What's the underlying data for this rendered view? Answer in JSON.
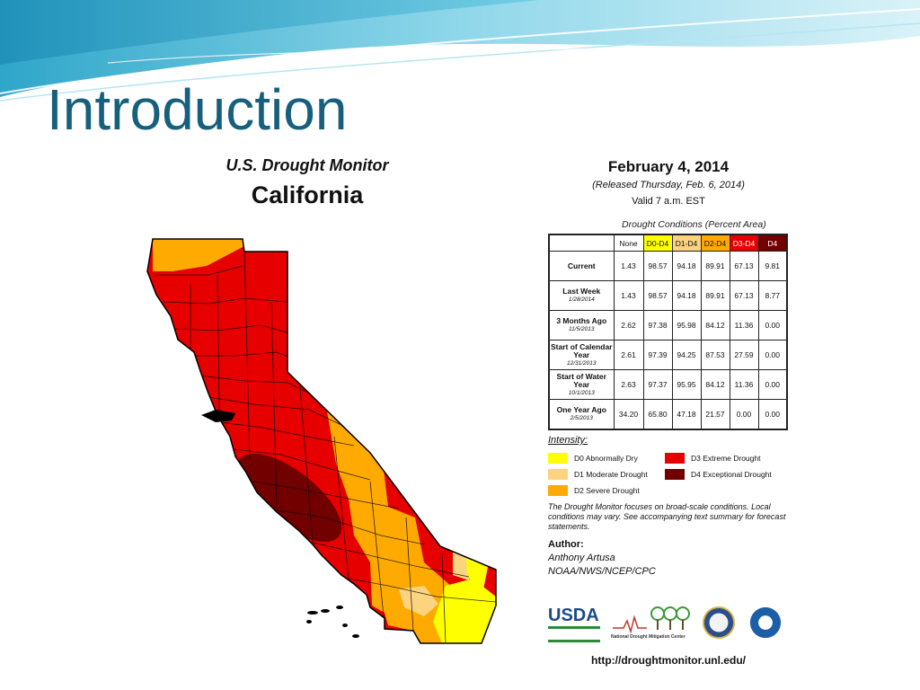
{
  "slide": {
    "title": "Introduction"
  },
  "map": {
    "header": "U.S. Drought Monitor",
    "state": "California"
  },
  "report": {
    "date": "February 4, 2014",
    "released": "(Released Thursday, Feb. 6, 2014)",
    "valid": "Valid 7 a.m. EST",
    "conditions_title": "Drought Conditions (Percent Area)"
  },
  "table": {
    "columns": [
      {
        "label": "None",
        "color": "#ffffff"
      },
      {
        "label": "D0-D4",
        "color": "#ffff00"
      },
      {
        "label": "D1-D4",
        "color": "#fcd37f"
      },
      {
        "label": "D2-D4",
        "color": "#ffaa00"
      },
      {
        "label": "D3-D4",
        "color": "#e60000"
      },
      {
        "label": "D4",
        "color": "#730000"
      }
    ],
    "rows": [
      {
        "label": "Current",
        "date": "",
        "values": [
          "1.43",
          "98.57",
          "94.18",
          "89.91",
          "67.13",
          "9.81"
        ]
      },
      {
        "label": "Last Week",
        "date": "1/28/2014",
        "values": [
          "1.43",
          "98.57",
          "94.18",
          "89.91",
          "67.13",
          "8.77"
        ]
      },
      {
        "label": "3 Months Ago",
        "date": "11/5/2013",
        "values": [
          "2.62",
          "97.38",
          "95.98",
          "84.12",
          "11.36",
          "0.00"
        ]
      },
      {
        "label": "Start of Calendar Year",
        "date": "12/31/2013",
        "values": [
          "2.61",
          "97.39",
          "94.25",
          "87.53",
          "27.59",
          "0.00"
        ]
      },
      {
        "label": "Start of Water Year",
        "date": "10/1/2013",
        "values": [
          "2.63",
          "97.37",
          "95.95",
          "84.12",
          "11.36",
          "0.00"
        ]
      },
      {
        "label": "One Year Ago",
        "date": "2/5/2013",
        "values": [
          "34.20",
          "65.80",
          "47.18",
          "21.57",
          "0.00",
          "0.00"
        ]
      }
    ]
  },
  "intensity": {
    "title": "Intensity:",
    "items": [
      {
        "label": "D0 Abnormally Dry",
        "color": "#ffff00"
      },
      {
        "label": "D1 Moderate Drought",
        "color": "#fcd37f"
      },
      {
        "label": "D2 Severe Drought",
        "color": "#ffaa00"
      },
      {
        "label": "D3 Extreme Drought",
        "color": "#e60000"
      },
      {
        "label": "D4 Exceptional Drought",
        "color": "#730000"
      }
    ]
  },
  "note": "The Drought Monitor focuses on broad-scale conditions. Local conditions may vary. See accompanying text summary for forecast statements.",
  "author": {
    "label": "Author:",
    "name": "Anthony Artusa",
    "org": "NOAA/NWS/NCEP/CPC"
  },
  "logos": {
    "usda": "USDA",
    "ndmc": "National Drought Mitigation Center"
  },
  "url": "http://droughtmonitor.unl.edu/"
}
